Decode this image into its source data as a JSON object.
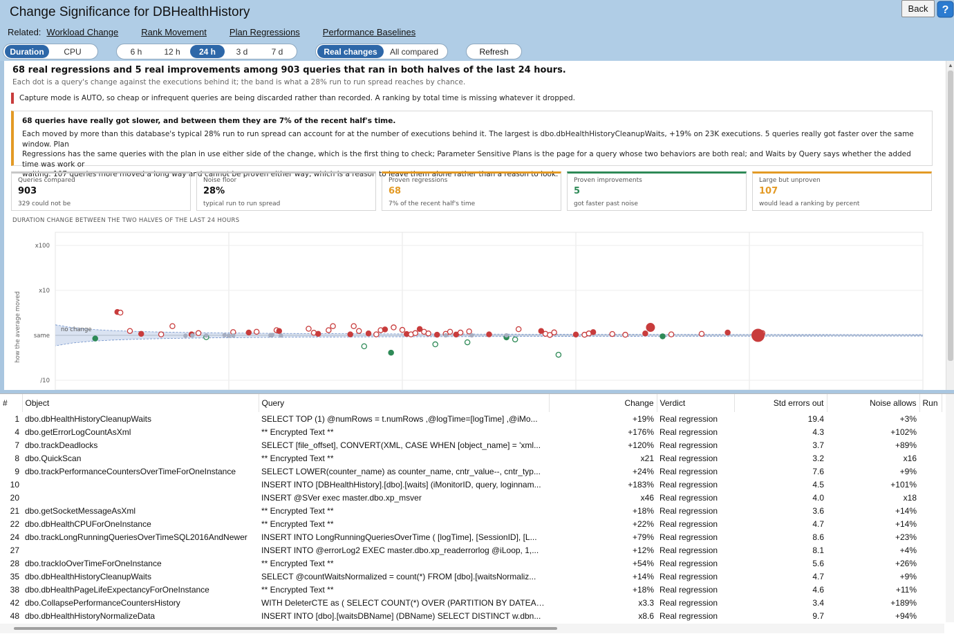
{
  "title": "Change Significance for DBHealthHistory",
  "back_label": "Back",
  "related": {
    "label": "Related:",
    "links": [
      "Workload Change",
      "Rank Movement",
      "Plan Regressions",
      "Performance Baselines"
    ]
  },
  "metric_toggle": [
    "Duration",
    "CPU"
  ],
  "window_toggle": [
    "6 h",
    "12 h",
    "24 h",
    "3 d",
    "7 d"
  ],
  "filter_toggle": [
    "Real changes",
    "All compared"
  ],
  "refresh_label": "Refresh",
  "headline": "68 real regressions and 5 real improvements among 903 queries that ran in both halves of the last 24 hours.",
  "subline": "Each dot is a query's change against the executions behind it; the band is what a 28% run to run spread reaches by chance.",
  "capture_note": "Capture mode is AUTO, so cheap or infrequent queries are being discarded rather than recorded. A ranking by total time is missing whatever it dropped.",
  "callout": {
    "title": "68 queries have really got slower, and between them they are 7% of the recent half's time.",
    "lines": [
      "Each moved by more than this database's typical 28% run to run spread can account for at the number of executions behind it. The largest is dbo.dbHealthHistoryCleanupWaits, +19% on 23K executions. 5 queries really got faster over the same window. Plan",
      "Regressions has the same queries with the plan in use either side of the change, which is the first thing to check; Parameter Sensitive Plans is the page for a query whose two behaviors are both real; and Waits by Query says whether the added time was work or",
      "waiting. 107 queries more moved a long way and cannot be proven either way, which is a reason to leave them alone rather than a reason to look."
    ]
  },
  "cards": [
    {
      "label": "Queries compared",
      "value": "903",
      "sub": "329 could not be"
    },
    {
      "label": "Noise floor",
      "value": "28%",
      "sub": "typical run to run spread"
    },
    {
      "label": "Proven regressions",
      "value": "68",
      "sub": "7% of the recent half's time"
    },
    {
      "label": "Proven improvements",
      "value": "5",
      "sub": "got faster past noise"
    },
    {
      "label": "Large but unproven",
      "value": "107",
      "sub": "would lead a ranking by percent"
    }
  ],
  "colors": {
    "accent": "#2d67a8",
    "regression": "#c83c3c",
    "improvement": "#2e8a57",
    "warning": "#e39a25"
  },
  "chart_data": {
    "type": "scatter",
    "title": "DURATION CHANGE BETWEEN THE TWO HALVES OF THE LAST 24 HOURS",
    "ylabel": "how the average moved",
    "y_ticks": [
      "x100",
      "x10",
      "same",
      "/10"
    ],
    "yscale": "log",
    "band_label": "no change",
    "series": [
      {
        "kind": "regression",
        "points": [
          [
            0.0715,
            3.3
          ],
          [
            0.075,
            3.2
          ],
          [
            0.086,
            1.25
          ],
          [
            0.099,
            1.08
          ],
          [
            0.122,
            1.05
          ],
          [
            0.135,
            1.6
          ],
          [
            0.157,
            1.05
          ],
          [
            0.165,
            1.12
          ],
          [
            0.205,
            1.18
          ],
          [
            0.223,
            1.15
          ],
          [
            0.232,
            1.2
          ],
          [
            0.255,
            1.3
          ],
          [
            0.258,
            1.25
          ],
          [
            0.292,
            1.4
          ],
          [
            0.298,
            1.14
          ],
          [
            0.303,
            1.08
          ],
          [
            0.315,
            1.3
          ],
          [
            0.32,
            1.6
          ],
          [
            0.34,
            1.05
          ],
          [
            0.344,
            1.6
          ],
          [
            0.35,
            1.25
          ],
          [
            0.361,
            1.1
          ],
          [
            0.37,
            1.05
          ],
          [
            0.375,
            1.3
          ],
          [
            0.38,
            1.35
          ],
          [
            0.39,
            1.5
          ],
          [
            0.4,
            1.32
          ],
          [
            0.405,
            1.07
          ],
          [
            0.41,
            1.05
          ],
          [
            0.415,
            1.12
          ],
          [
            0.42,
            1.38
          ],
          [
            0.425,
            1.2
          ],
          [
            0.43,
            1.1
          ],
          [
            0.44,
            1.03
          ],
          [
            0.45,
            1.08
          ],
          [
            0.455,
            1.2
          ],
          [
            0.462,
            1.04
          ],
          [
            0.467,
            1.15
          ],
          [
            0.477,
            1.22
          ],
          [
            0.5,
            1.05
          ],
          [
            0.534,
            1.37
          ],
          [
            0.565,
            1.08
          ],
          [
            0.56,
            1.25
          ],
          [
            0.57,
            1.02
          ],
          [
            0.575,
            1.16
          ],
          [
            0.6,
            1.04
          ],
          [
            0.61,
            1.03
          ],
          [
            0.615,
            1.1
          ],
          [
            0.62,
            1.18
          ],
          [
            0.642,
            1.07
          ],
          [
            0.657,
            1.03
          ],
          [
            0.68,
            1.1
          ],
          [
            0.71,
            1.05
          ],
          [
            0.745,
            1.08
          ],
          [
            0.775,
            1.15
          ],
          [
            0.808,
            1.05
          ],
          [
            0.815,
            1.12
          ]
        ]
      },
      {
        "kind": "improvement",
        "points": [
          [
            0.046,
            0.85
          ],
          [
            0.174,
            0.91
          ],
          [
            0.356,
            0.57
          ],
          [
            0.387,
            0.41
          ],
          [
            0.438,
            0.63
          ],
          [
            0.475,
            0.7
          ],
          [
            0.52,
            0.9
          ],
          [
            0.53,
            0.81
          ],
          [
            0.58,
            0.37
          ],
          [
            0.7,
            0.95
          ]
        ]
      },
      {
        "kind": "neutral",
        "points": [
          [
            0.15,
            0.98
          ],
          [
            0.158,
            1.0
          ],
          [
            0.174,
            0.99
          ],
          [
            0.195,
            1.01
          ],
          [
            0.2,
            0.98
          ],
          [
            0.205,
            0.99
          ],
          [
            0.248,
            1.0
          ],
          [
            0.25,
            1.02
          ],
          [
            0.26,
            0.99
          ],
          [
            0.45,
            1.0
          ],
          [
            0.48,
            1.0
          ],
          [
            0.52,
            1.0
          ]
        ]
      }
    ]
  },
  "table": {
    "columns": [
      "#",
      "Object",
      "Query",
      "Change",
      "Verdict",
      "Std errors out",
      "Noise allows",
      "Run"
    ],
    "rows": [
      [
        "1",
        "dbo.dbHealthHistoryCleanupWaits",
        "SELECT TOP (1) @numRows = t.numRows ,@logTime=[logTime] ,@iMo...",
        "+19%",
        "Real regression",
        "19.4",
        "+3%"
      ],
      [
        "4",
        "dbo.getErrorLogCountAsXml",
        "** Encrypted Text **",
        "+176%",
        "Real regression",
        "4.3",
        "+102%"
      ],
      [
        "7",
        "dbo.trackDeadlocks",
        "SELECT [file_offset], CONVERT(XML, CASE WHEN [object_name] = 'xml...",
        "+120%",
        "Real regression",
        "3.7",
        "+89%"
      ],
      [
        "8",
        "dbo.QuickScan",
        "** Encrypted Text **",
        "x21",
        "Real regression",
        "3.2",
        "x16"
      ],
      [
        "9",
        "dbo.trackPerformanceCountersOverTimeForOneInstance",
        "SELECT LOWER(counter_name) as counter_name, cntr_value--, cntr_typ...",
        "+24%",
        "Real regression",
        "7.6",
        "+9%"
      ],
      [
        "10",
        "",
        "INSERT INTO [DBHealthHistory].[dbo].[waits] (iMonitorID, query, loginnam...",
        "+183%",
        "Real regression",
        "4.5",
        "+101%"
      ],
      [
        "20",
        "",
        "INSERT @SVer exec master.dbo.xp_msver",
        "x46",
        "Real regression",
        "4.0",
        "x18"
      ],
      [
        "21",
        "dbo.getSocketMessageAsXml",
        "** Encrypted Text **",
        "+18%",
        "Real regression",
        "3.6",
        "+14%"
      ],
      [
        "22",
        "dbo.dbHealthCPUForOneInstance",
        "** Encrypted Text **",
        "+22%",
        "Real regression",
        "4.7",
        "+14%"
      ],
      [
        "24",
        "dbo.trackLongRunningQueriesOverTimeSQL2016AndNewer",
        "INSERT INTO LongRunningQueriesOverTime ( [logTime], [SessionID], [L...",
        "+79%",
        "Real regression",
        "8.6",
        "+23%"
      ],
      [
        "27",
        "",
        "INSERT INTO @errorLog2 EXEC master.dbo.xp_readerrorlog @iLoop, 1,...",
        "+12%",
        "Real regression",
        "8.1",
        "+4%"
      ],
      [
        "28",
        "dbo.trackIoOverTimeForOneInstance",
        "** Encrypted Text **",
        "+54%",
        "Real regression",
        "5.6",
        "+26%"
      ],
      [
        "35",
        "dbo.dbHealthHistoryCleanupWaits",
        "SELECT @countWaitsNormalized = count(*) FROM [dbo].[waitsNormaliz...",
        "+14%",
        "Real regression",
        "4.7",
        "+9%"
      ],
      [
        "38",
        "dbo.dbHealthPageLifeExpectancyForOneInstance",
        "** Encrypted Text **",
        "+18%",
        "Real regression",
        "4.6",
        "+11%"
      ],
      [
        "42",
        "dbo.CollapsePerformanceCountersHistory",
        "WITH DeleterCTE as ( SELECT COUNT(*) OVER (PARTITION BY DATEAD...",
        "x3.3",
        "Real regression",
        "3.4",
        "+189%"
      ],
      [
        "48",
        "dbo.dbHealthHistoryNormalizeData",
        "INSERT INTO [dbo].[waitsDBName] (DBName) SELECT DISTINCT w.dbn...",
        "x8.6",
        "Real regression",
        "9.7",
        "+94%"
      ]
    ]
  }
}
